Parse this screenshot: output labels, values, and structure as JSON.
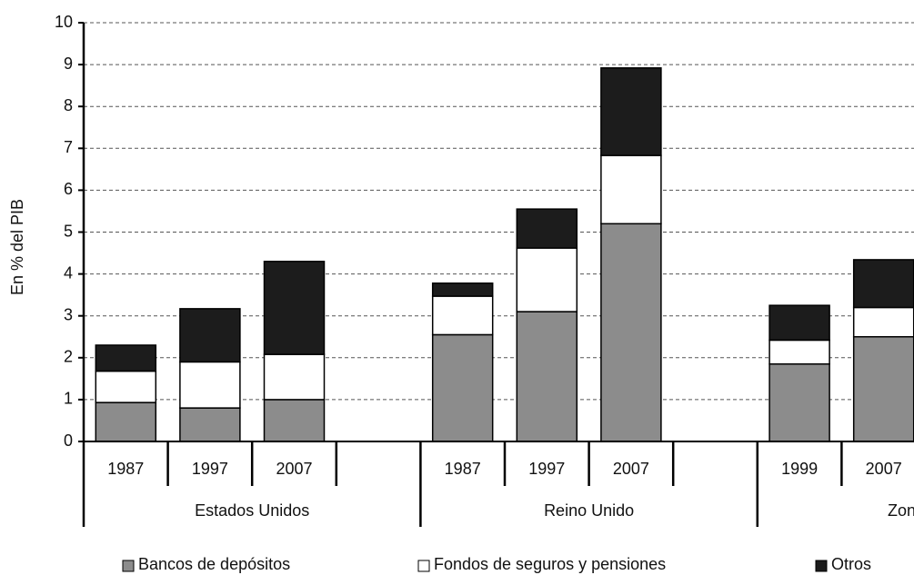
{
  "chart_data": {
    "type": "stacked-bar",
    "y_label": "En % del PIB",
    "categories": [
      "1987",
      "1997",
      "2007",
      null,
      "1987",
      "1997",
      "2007",
      null,
      "1999",
      "2007"
    ],
    "groups": [
      "Estados Unidos",
      "Reino Unido",
      "Zona Euro"
    ],
    "series": [
      {
        "name": "Bancos de depósitos",
        "color": "#8c8c8c",
        "values": [
          0.93,
          0.8,
          1.0,
          null,
          2.55,
          3.1,
          5.2,
          null,
          1.85,
          2.5
        ]
      },
      {
        "name": "Fondos de seguros y pensiones",
        "color": "#ffffff",
        "values": [
          0.75,
          1.1,
          1.08,
          null,
          0.92,
          1.52,
          1.63,
          null,
          0.57,
          0.7
        ]
      },
      {
        "name": "Otros",
        "color": "#1c1c1c",
        "values": [
          0.62,
          1.27,
          2.22,
          null,
          0.31,
          0.93,
          2.09,
          null,
          0.83,
          1.14
        ]
      }
    ],
    "ylim": [
      0,
      10
    ],
    "yticks": [
      0,
      1,
      2,
      3,
      4,
      5,
      6,
      7,
      8,
      9,
      10
    ],
    "grid": true
  }
}
